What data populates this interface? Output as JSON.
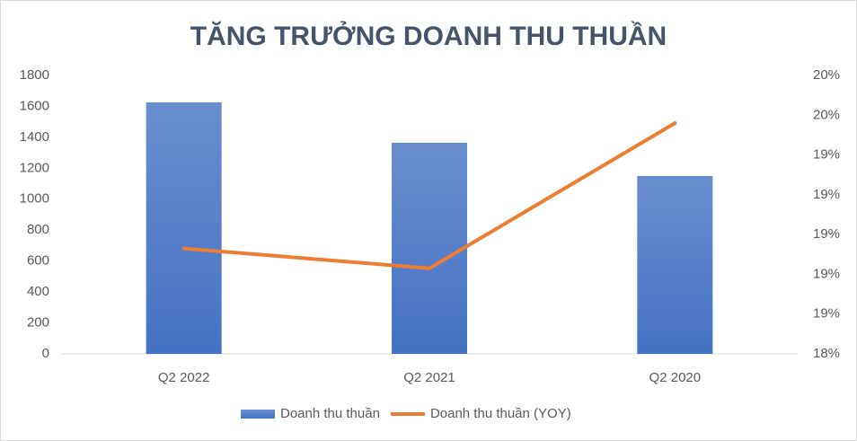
{
  "chart_data": {
    "type": "bar",
    "title": "TĂNG TRƯỞNG DOANH THU THUẦN",
    "categories": [
      "Q2 2022",
      "Q2 2021",
      "Q2 2020"
    ],
    "series": [
      {
        "name": "Doanh thu thuần",
        "type": "bar",
        "color": "#4472c4",
        "values": [
          1626,
          1365,
          1150
        ]
      },
      {
        "name": "Doanh thu thuần (YOY)",
        "type": "line",
        "axis": "y2",
        "color": "#ed7d31",
        "values": [
          18.93,
          18.83,
          19.56
        ]
      }
    ],
    "ylim": [
      0,
      1800
    ],
    "yticks": [
      0,
      200,
      400,
      600,
      800,
      1000,
      1200,
      1400,
      1600,
      1800
    ],
    "y2lim": [
      18.4,
      19.8
    ],
    "y2ticks": [
      {
        "value": 18.4,
        "label": "18%"
      },
      {
        "value": 18.6,
        "label": "19%"
      },
      {
        "value": 18.8,
        "label": "19%"
      },
      {
        "value": 19.0,
        "label": "19%"
      },
      {
        "value": 19.2,
        "label": "19%"
      },
      {
        "value": 19.4,
        "label": "19%"
      },
      {
        "value": 19.6,
        "label": "20%"
      },
      {
        "value": 19.8,
        "label": "20%"
      }
    ],
    "grid": false,
    "legend": "bottom"
  }
}
